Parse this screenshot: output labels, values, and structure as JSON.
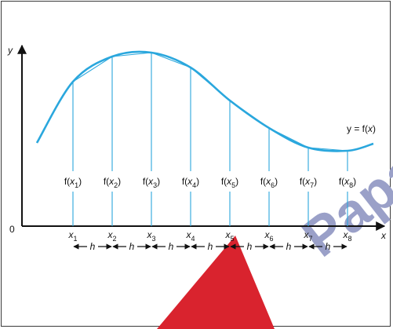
{
  "axes": {
    "origin_label": "0",
    "y_axis_label": "y",
    "x_axis_label": "x"
  },
  "curve": {
    "label_left": "y = f(",
    "label_var": "x",
    "label_right": ")",
    "color": "#2aa7dd"
  },
  "ordinates": [
    {
      "f_prefix": "f(",
      "var": "x",
      "sub": "1",
      "f_suffix": ")",
      "x_label": "x",
      "x_sub": "1"
    },
    {
      "f_prefix": "f(",
      "var": "x",
      "sub": "2",
      "f_suffix": ")",
      "x_label": "x",
      "x_sub": "2"
    },
    {
      "f_prefix": "f(",
      "var": "x",
      "sub": "3",
      "f_suffix": ")",
      "x_label": "x",
      "x_sub": "3"
    },
    {
      "f_prefix": "f(",
      "var": "x",
      "sub": "4",
      "f_suffix": ")",
      "x_label": "x",
      "x_sub": "4"
    },
    {
      "f_prefix": "f(",
      "var": "x",
      "sub": "5",
      "f_suffix": ")",
      "x_label": "x",
      "x_sub": "5"
    },
    {
      "f_prefix": "f(",
      "var": "x",
      "sub": "6",
      "f_suffix": ")",
      "x_label": "x",
      "x_sub": "6"
    },
    {
      "f_prefix": "f(",
      "var": "x",
      "sub": "7",
      "f_suffix": ")",
      "x_label": "x",
      "x_sub": "7"
    },
    {
      "f_prefix": "f(",
      "var": "x",
      "sub": "8",
      "f_suffix": ")",
      "x_label": "x",
      "x_sub": "8"
    }
  ],
  "spacing": {
    "label": "h",
    "count": 7
  },
  "watermark": {
    "text": "Papa",
    "color": "#d9232e"
  }
}
